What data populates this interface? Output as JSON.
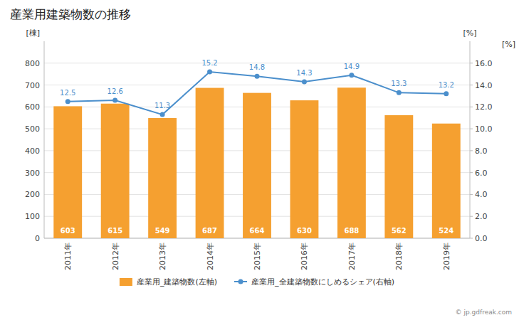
{
  "chart_data": {
    "type": "bar",
    "title": "産業用建築物数の推移",
    "categories": [
      "2011年",
      "2012年",
      "2013年",
      "2014年",
      "2015年",
      "2016年",
      "2017年",
      "2018年",
      "2019年"
    ],
    "series": [
      {
        "name": "産業用_建築物数(左軸)",
        "type": "bar",
        "color": "#F5A030",
        "values": [
          603,
          615,
          549,
          687,
          664,
          630,
          688,
          562,
          524
        ],
        "data_labels": true
      },
      {
        "name": "産業用_全建築物数にしめるシェア(右軸)",
        "type": "line",
        "color": "#4B8FCC",
        "axis": "y2",
        "marker": "circle",
        "values": [
          12.5,
          12.6,
          11.3,
          15.2,
          14.8,
          14.3,
          14.9,
          13.3,
          13.2
        ],
        "data_labels": true
      }
    ],
    "y_label": "[棟]",
    "y2_label": "[%]",
    "ylim": [
      0,
      900
    ],
    "yticks": [
      0,
      100,
      200,
      300,
      400,
      500,
      600,
      700,
      800
    ],
    "y2lim": [
      0,
      18.0
    ],
    "y2ticks": [
      {
        "value": 0.0,
        "label": "0.0"
      },
      {
        "value": 2.0,
        "label": "2.0"
      },
      {
        "value": 4.0,
        "label": "4.0"
      },
      {
        "value": 6.0,
        "label": "6.0"
      },
      {
        "value": 8.0,
        "label": "8.0"
      },
      {
        "value": 10.0,
        "label": "10.0"
      },
      {
        "value": 12.0,
        "label": "12.0"
      },
      {
        "value": 14.0,
        "label": "14.0"
      },
      {
        "value": 16.0,
        "label": "16.0"
      }
    ],
    "annotations": [
      "[%]",
      "© jp.gdfreak.com"
    ],
    "grid": true,
    "legend": "bottom"
  }
}
